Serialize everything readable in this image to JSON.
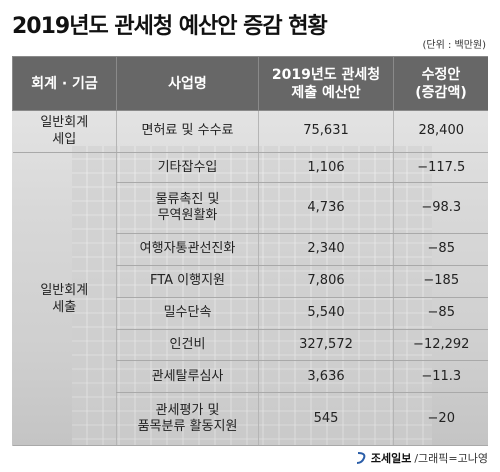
{
  "title": "2019년도 관세청 예산안 증감 현황",
  "unit": "(단위 : 백만원)",
  "headers": {
    "category": "회계 · 기금",
    "project": "사업명",
    "budget_line1": "2019년도 관세청",
    "budget_line2": "제출 예산안",
    "change_line1": "수정안",
    "change_line2": "(증감액)"
  },
  "groups": {
    "revenue_line1": "일반회계",
    "revenue_line2": "세입",
    "expense_line1": "일반회계",
    "expense_line2": "세출"
  },
  "rows": [
    {
      "name1": "면허료 및 수수료",
      "name2": "",
      "budget": "75,631",
      "change": "28,400"
    },
    {
      "name1": "기타잡수입",
      "name2": "",
      "budget": "1,106",
      "change": "−117.5"
    },
    {
      "name1": "물류촉진 및",
      "name2": "무역원활화",
      "budget": "4,736",
      "change": "−98.3"
    },
    {
      "name1": "여행자통관선진화",
      "name2": "",
      "budget": "2,340",
      "change": "−85"
    },
    {
      "name1": "FTA 이행지원",
      "name2": "",
      "budget": "7,806",
      "change": "−185"
    },
    {
      "name1": "밀수단속",
      "name2": "",
      "budget": "5,540",
      "change": "−85"
    },
    {
      "name1": "인건비",
      "name2": "",
      "budget": "327,572",
      "change": "−12,292"
    },
    {
      "name1": "관세탈루심사",
      "name2": "",
      "budget": "3,636",
      "change": "−11.3"
    },
    {
      "name1": "관세평가 및",
      "name2": "품목분류 활동지원",
      "budget": "545",
      "change": "−20"
    }
  ],
  "footer": {
    "brand": "조세일보",
    "credit": "/그래픽=고나영"
  },
  "colors": {
    "header_bg": "#676767",
    "header_text": "#ffffff",
    "brand_logo": "#2a5da8"
  }
}
